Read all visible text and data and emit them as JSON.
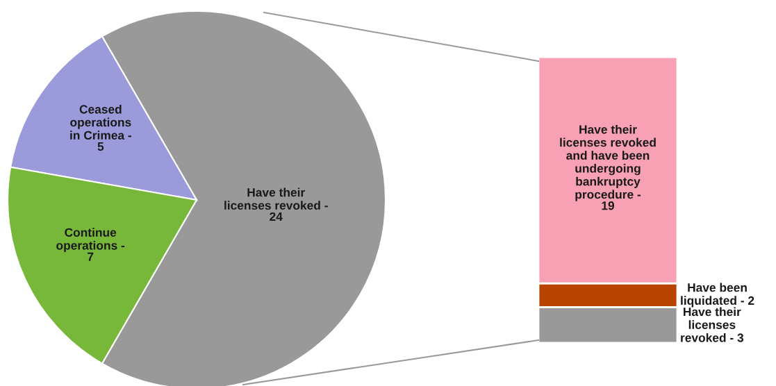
{
  "chart_data": [
    {
      "type": "pie",
      "categories": [
        "Have their\nlicenses revoked -",
        "Ceased\noperations\nin Crimea -",
        "Continue\noperations -"
      ],
      "values": [
        24,
        5,
        7
      ],
      "colors": [
        "#999999",
        "#9b9bdb",
        "#77b83a"
      ],
      "data_labels": true
    },
    {
      "type": "bar",
      "stacked": true,
      "categories": [
        null
      ],
      "tick_labels": false,
      "series": [
        {
          "name": "Have their\nlicenses\nrevoked - 3",
          "color": "#999999",
          "values": [
            3
          ],
          "value_labels": [
            null
          ]
        },
        {
          "name": "Have been\nliquidated - 2",
          "color": "#b84300",
          "values": [
            2
          ],
          "value_labels": [
            null
          ]
        },
        {
          "name": "Have their\nlicenses revoked\nand have been\nundergoing\nbankruptcy\nprocedure -",
          "color": "#f8a0b4",
          "values": [
            19
          ],
          "value_labels": [
            "19"
          ]
        }
      ]
    }
  ]
}
